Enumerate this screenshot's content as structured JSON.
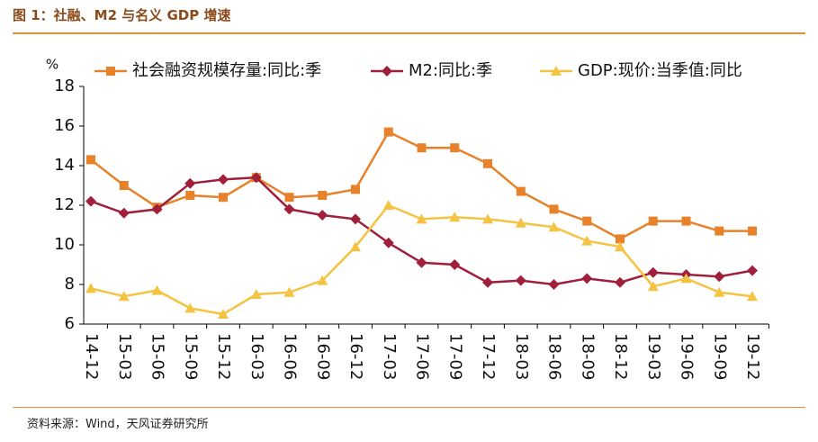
{
  "header": {
    "title": "图 1：社融、M2 与名义 GDP 增速"
  },
  "footer": {
    "source": "资料来源：Wind，天风证券研究所"
  },
  "chart_data": {
    "type": "line",
    "y_unit": "%",
    "categories": [
      "14-12",
      "15-03",
      "15-06",
      "15-09",
      "15-12",
      "16-03",
      "16-06",
      "16-09",
      "16-12",
      "17-03",
      "17-06",
      "17-09",
      "17-12",
      "18-03",
      "18-06",
      "18-09",
      "18-12",
      "19-03",
      "19-06",
      "19-09",
      "19-12"
    ],
    "series": [
      {
        "name": "社会融资规模存量:同比:季",
        "color": "#e8822a",
        "marker": "square",
        "values": [
          14.3,
          13.0,
          11.9,
          12.5,
          12.4,
          13.4,
          12.4,
          12.5,
          12.8,
          15.7,
          14.9,
          14.9,
          14.1,
          12.7,
          11.8,
          11.2,
          10.3,
          11.2,
          11.2,
          10.7,
          10.7
        ]
      },
      {
        "name": "M2:同比:季",
        "color": "#a0203c",
        "marker": "diamond",
        "values": [
          12.2,
          11.6,
          11.8,
          13.1,
          13.3,
          13.4,
          11.8,
          11.5,
          11.3,
          10.1,
          9.1,
          9.0,
          8.1,
          8.2,
          8.0,
          8.3,
          8.1,
          8.6,
          8.5,
          8.4,
          8.7
        ]
      },
      {
        "name": "GDP:现价:当季值:同比",
        "color": "#f5c342",
        "marker": "triangle",
        "values": [
          7.8,
          7.4,
          7.7,
          6.8,
          6.5,
          7.5,
          7.6,
          8.2,
          9.9,
          12.0,
          11.3,
          11.4,
          11.3,
          11.1,
          10.9,
          10.2,
          9.9,
          7.9,
          8.3,
          7.6,
          7.4
        ]
      }
    ],
    "ylim": [
      6,
      18
    ],
    "yticks": [
      6,
      8,
      10,
      12,
      14,
      16,
      18
    ],
    "grid": false,
    "legend": "top"
  }
}
